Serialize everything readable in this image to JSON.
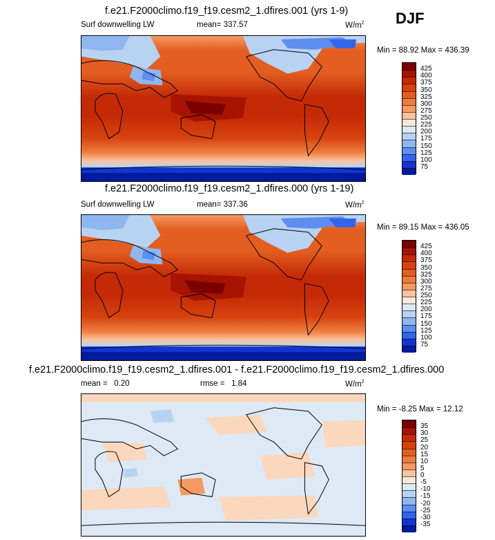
{
  "season": "DJF",
  "panels": [
    {
      "title": "f.e21.F2000climo.f19_f19.cesm2_1.dfires.001 (yrs 1-9)",
      "field": "Surf downwelling LW",
      "mean_label": "mean=",
      "mean_value": "337.57",
      "units": "W/m",
      "units_exp": "2",
      "min_max": "Min =  88.92 Max = 436.39",
      "levels": [
        "425",
        "400",
        "375",
        "350",
        "325",
        "300",
        "275",
        "250",
        "225",
        "200",
        "175",
        "150",
        "125",
        "100",
        "75"
      ],
      "colors": [
        "#7a0000",
        "#a61300",
        "#c42a06",
        "#d6420e",
        "#e35e20",
        "#ee7c3e",
        "#f69a63",
        "#fbc39e",
        "#f7e9d8",
        "#dde9f5",
        "#b8d3f2",
        "#8fb7ef",
        "#5d8ef0",
        "#3266ea",
        "#1235cf",
        "#021a9c"
      ]
    },
    {
      "title": "f.e21.F2000climo.f19_f19.cesm2_1.dfires.000 (yrs 1-19)",
      "field": "Surf downwelling LW",
      "mean_label": "mean=",
      "mean_value": "337.36",
      "units": "W/m",
      "units_exp": "2",
      "min_max": "Min =  89.15 Max = 436.05",
      "levels": [
        "425",
        "400",
        "375",
        "350",
        "325",
        "300",
        "275",
        "250",
        "225",
        "200",
        "175",
        "150",
        "125",
        "100",
        "75"
      ],
      "colors": [
        "#7a0000",
        "#a61300",
        "#c42a06",
        "#d6420e",
        "#e35e20",
        "#ee7c3e",
        "#f69a63",
        "#fbc39e",
        "#f7e9d8",
        "#dde9f5",
        "#b8d3f2",
        "#8fb7ef",
        "#5d8ef0",
        "#3266ea",
        "#1235cf",
        "#021a9c"
      ]
    },
    {
      "title": "f.e21.F2000climo.f19_f19.cesm2_1.dfires.001 - f.e21.F2000climo.f19_f19.cesm2_1.dfires.000",
      "field": "",
      "mean_label": "mean =",
      "mean_value": "0.20",
      "rmse_label": "rmse =",
      "rmse_value": "1.84",
      "units": "W/m",
      "units_exp": "2",
      "min_max": "Min = -8.25 Max =  12.12",
      "levels": [
        "35",
        "30",
        "25",
        "20",
        "15",
        "10",
        "5",
        "0",
        "-5",
        "-10",
        "-15",
        "-20",
        "-25",
        "-30",
        "-35"
      ],
      "colors": [
        "#7a0000",
        "#a61300",
        "#c42a06",
        "#d6420e",
        "#e35e20",
        "#ee7c3e",
        "#f69a63",
        "#fbc39e",
        "#f7e9d8",
        "#dde9f5",
        "#b8d3f2",
        "#8fb7ef",
        "#5d8ef0",
        "#3266ea",
        "#1235cf",
        "#021a9c"
      ]
    }
  ]
}
